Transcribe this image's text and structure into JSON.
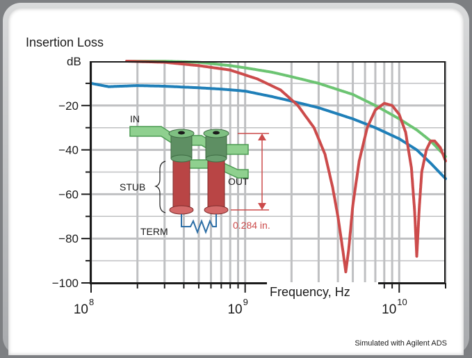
{
  "chart_data": {
    "type": "line",
    "title": "Insertion Loss",
    "ylabel": "dB",
    "xlabel": "Frequency, Hz",
    "xscale": "log",
    "xlim": [
      100000000,
      20000000000
    ],
    "ylim": [
      -100,
      0
    ],
    "yticks": [
      {
        "value": -20,
        "label": "−20"
      },
      {
        "value": -40,
        "label": "−40"
      },
      {
        "value": -60,
        "label": "−60"
      },
      {
        "value": -80,
        "label": "−80"
      },
      {
        "value": -100,
        "label": "−100"
      }
    ],
    "xticks": [
      {
        "value": 100000000,
        "base": "10",
        "exp": "8"
      },
      {
        "value": 1000000000,
        "base": "10",
        "exp": "9"
      },
      {
        "value": 10000000000,
        "base": "10",
        "exp": "10"
      }
    ],
    "grid": true,
    "series": [
      {
        "color": "#1f7fb8",
        "points": [
          [
            100000000,
            -10
          ],
          [
            130000000,
            -11.5
          ],
          [
            200000000,
            -11
          ],
          [
            300000000,
            -11.3
          ],
          [
            500000000,
            -12
          ],
          [
            700000000,
            -12.6
          ],
          [
            1000000000,
            -13.5
          ],
          [
            1500000000,
            -16
          ],
          [
            2000000000,
            -18
          ],
          [
            3000000000,
            -21
          ],
          [
            5000000000,
            -26
          ],
          [
            7000000000,
            -30
          ],
          [
            10000000000,
            -35
          ],
          [
            13000000000,
            -40
          ],
          [
            16000000000,
            -46
          ],
          [
            20000000000,
            -53
          ]
        ]
      },
      {
        "color": "#6cc472",
        "points": [
          [
            170000000,
            0
          ],
          [
            300000000,
            0
          ],
          [
            500000000,
            -0.5
          ],
          [
            800000000,
            -2
          ],
          [
            1000000000,
            -3
          ],
          [
            1500000000,
            -5
          ],
          [
            2000000000,
            -7
          ],
          [
            3000000000,
            -10
          ],
          [
            5000000000,
            -15
          ],
          [
            7000000000,
            -20
          ],
          [
            10000000000,
            -26
          ],
          [
            13000000000,
            -31
          ],
          [
            16000000000,
            -36
          ],
          [
            20000000000,
            -43
          ]
        ]
      },
      {
        "color": "#cc4b4b",
        "points": [
          [
            170000000,
            0
          ],
          [
            300000000,
            -0.5
          ],
          [
            500000000,
            -2
          ],
          [
            800000000,
            -4
          ],
          [
            1200000000,
            -8
          ],
          [
            1700000000,
            -13
          ],
          [
            2200000000,
            -20
          ],
          [
            2800000000,
            -30
          ],
          [
            3300000000,
            -42
          ],
          [
            3700000000,
            -57
          ],
          [
            4000000000,
            -70
          ],
          [
            4300000000,
            -85
          ],
          [
            4500000000,
            -95
          ],
          [
            4700000000,
            -85
          ],
          [
            5000000000,
            -65
          ],
          [
            5500000000,
            -45
          ],
          [
            6200000000,
            -30
          ],
          [
            7000000000,
            -22
          ],
          [
            8000000000,
            -19
          ],
          [
            9000000000,
            -20
          ],
          [
            10000000000,
            -24
          ],
          [
            11000000000,
            -32
          ],
          [
            12000000000,
            -48
          ],
          [
            12600000000,
            -68
          ],
          [
            13000000000,
            -88
          ],
          [
            13500000000,
            -66
          ],
          [
            14000000000,
            -50
          ],
          [
            15000000000,
            -40
          ],
          [
            16000000000,
            -36
          ],
          [
            17000000000,
            -36
          ],
          [
            18500000000,
            -39
          ],
          [
            20000000000,
            -45
          ]
        ]
      }
    ],
    "annotations": {
      "in_label": "IN",
      "out_label": "OUT",
      "stub_label": "STUB",
      "term_label": "TERM",
      "dimension_label": "0.284 in."
    },
    "credit": "Simulated with Agilent ADS"
  }
}
